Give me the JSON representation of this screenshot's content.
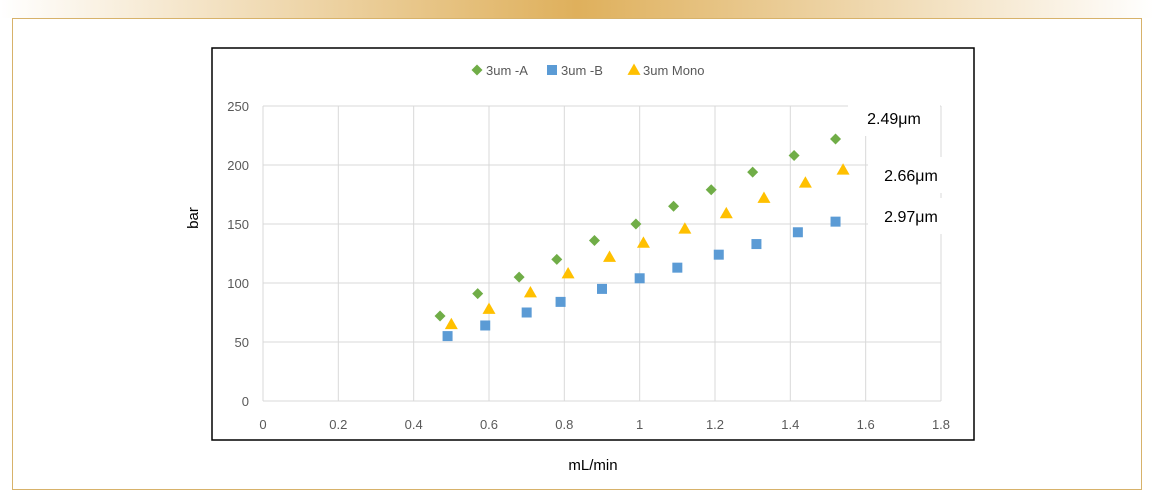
{
  "chart_data": {
    "type": "scatter",
    "xlabel": "mL/min",
    "ylabel": "bar",
    "xlim": [
      0,
      1.8
    ],
    "ylim": [
      0,
      250
    ],
    "x_ticks": [
      "0",
      "0.2",
      "0.4",
      "0.6",
      "0.8",
      "1",
      "1.2",
      "1.4",
      "1.6",
      "1.8"
    ],
    "y_ticks": [
      "0",
      "50",
      "100",
      "150",
      "200",
      "250"
    ],
    "grid": true,
    "legend_position": "top",
    "series": [
      {
        "name": "3um -A",
        "color": "#70ad47",
        "marker": "diamond",
        "x": [
          0.47,
          0.57,
          0.68,
          0.78,
          0.88,
          0.99,
          1.09,
          1.19,
          1.3,
          1.41,
          1.52
        ],
        "y": [
          72,
          91,
          105,
          120,
          136,
          150,
          165,
          179,
          194,
          208,
          222
        ]
      },
      {
        "name": "3um -B",
        "color": "#5b9bd5",
        "marker": "square",
        "x": [
          0.49,
          0.59,
          0.7,
          0.79,
          0.9,
          1.0,
          1.1,
          1.21,
          1.31,
          1.42,
          1.52
        ],
        "y": [
          55,
          64,
          75,
          84,
          95,
          104,
          113,
          124,
          133,
          143,
          152
        ]
      },
      {
        "name": "3um Mono",
        "color": "#ffc000",
        "marker": "triangle",
        "x": [
          0.5,
          0.6,
          0.71,
          0.81,
          0.92,
          1.01,
          1.12,
          1.23,
          1.33,
          1.44,
          1.54
        ],
        "y": [
          65,
          78,
          92,
          108,
          122,
          134,
          146,
          159,
          172,
          185,
          196
        ]
      }
    ],
    "annotations": [
      "2.49μm",
      "2.66μm",
      "2.97μm"
    ]
  }
}
